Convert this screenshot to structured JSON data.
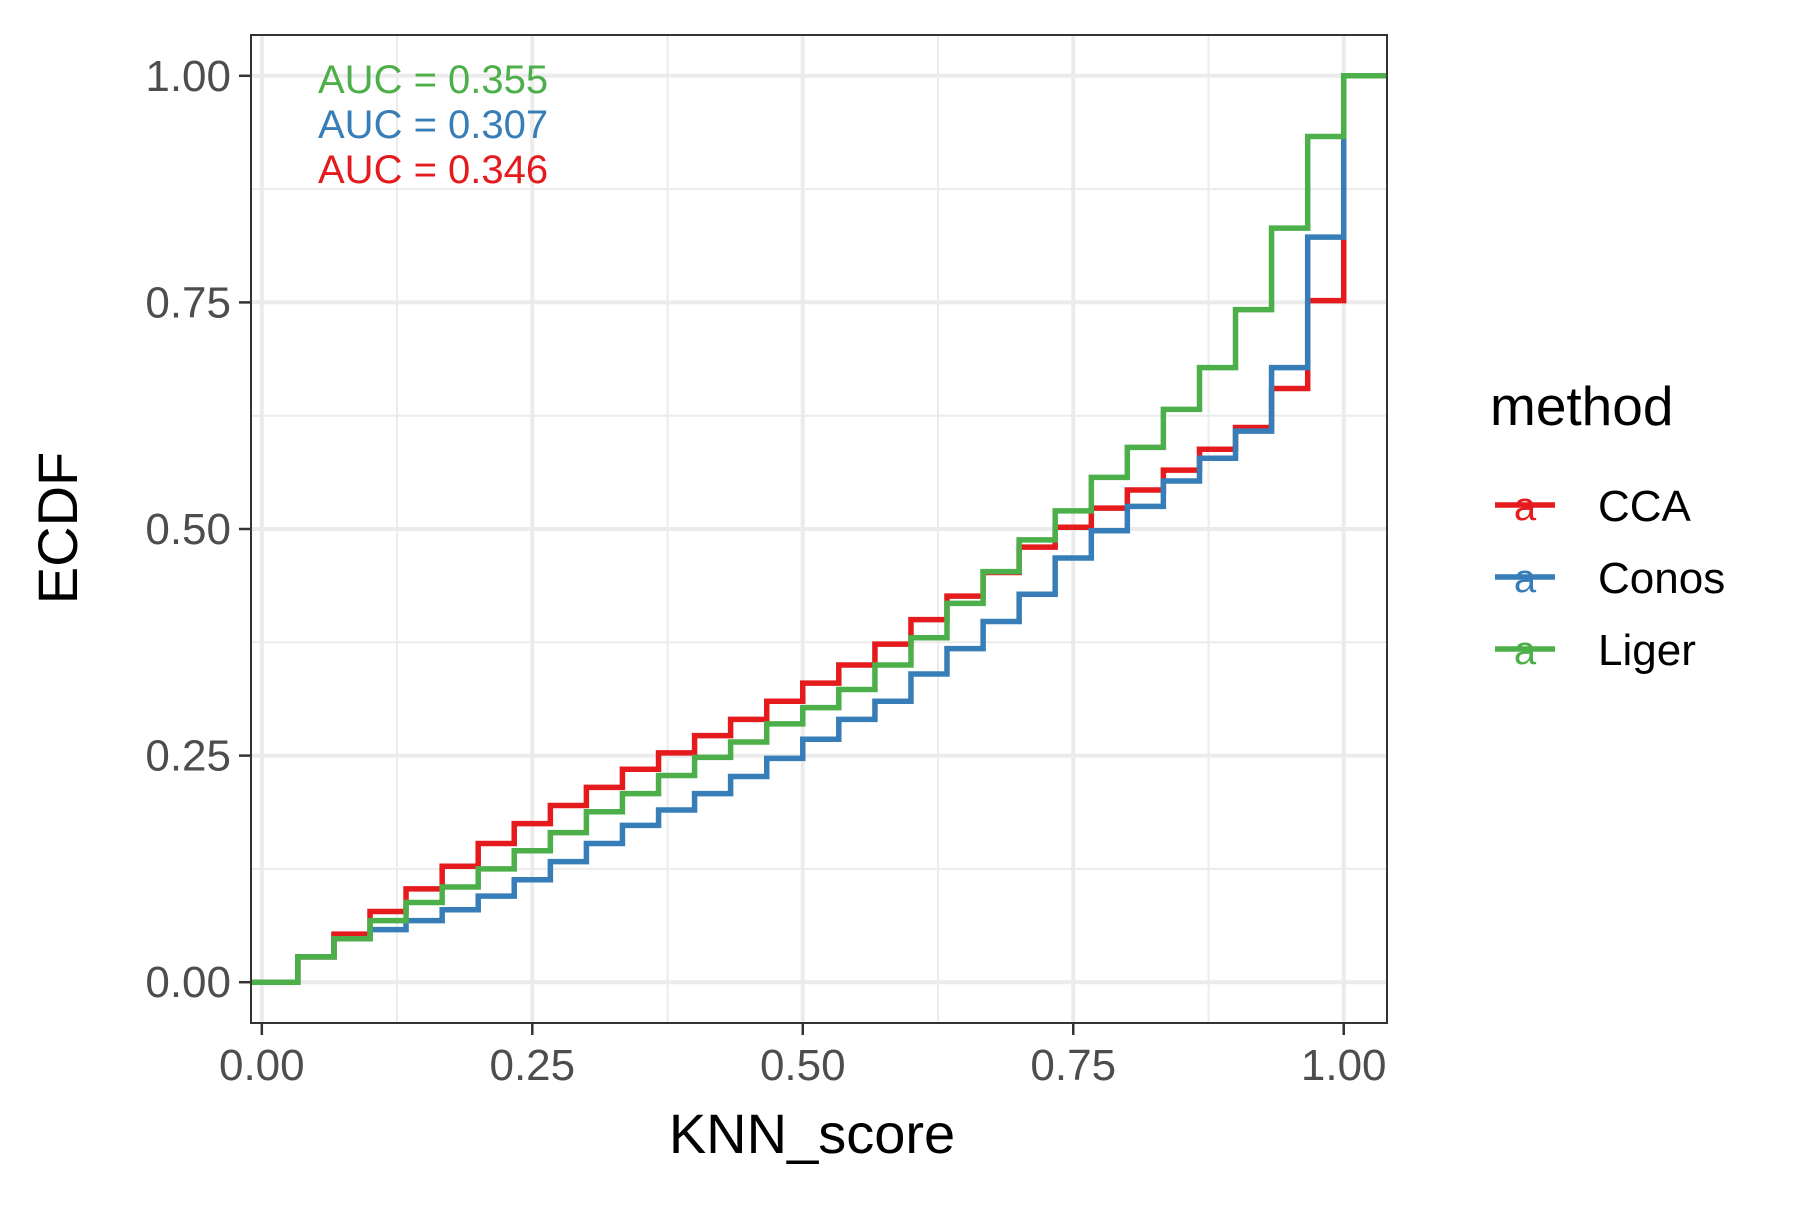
{
  "chart_data": {
    "type": "line",
    "step": true,
    "title": "",
    "xlabel": "KNN_score",
    "ylabel": "ECDF",
    "xlim": [
      -0.01,
      1.04
    ],
    "ylim": [
      -0.045,
      1.045
    ],
    "x_ticks": [
      0,
      0.25,
      0.5,
      0.75,
      1
    ],
    "x_tick_labels": [
      "0.00",
      "0.25",
      "0.50",
      "0.75",
      "1.00"
    ],
    "y_ticks": [
      0,
      0.25,
      0.5,
      0.75,
      1
    ],
    "y_tick_labels": [
      "0.00",
      "0.25",
      "0.50",
      "0.75",
      "1.00"
    ],
    "grid": true,
    "legend": {
      "title": "method",
      "position": "right",
      "key_glyph": "a"
    },
    "annotations": [
      {
        "text": "AUC = 0.355",
        "series": "Liger"
      },
      {
        "text": "AUC = 0.307",
        "series": "Conos"
      },
      {
        "text": "AUC = 0.346",
        "series": "CCA"
      }
    ],
    "series": [
      {
        "name": "CCA",
        "color": "#e41a1c",
        "x": [
          0,
          0.0333,
          0.0667,
          0.1,
          0.1333,
          0.1667,
          0.2,
          0.2333,
          0.2667,
          0.3,
          0.3333,
          0.3667,
          0.4,
          0.4333,
          0.4667,
          0.5,
          0.5333,
          0.5667,
          0.6,
          0.6333,
          0.6667,
          0.7,
          0.7333,
          0.7667,
          0.8,
          0.8333,
          0.8667,
          0.9,
          0.9333,
          0.9667,
          1.0
        ],
        "y": [
          0,
          0.028,
          0.053,
          0.078,
          0.103,
          0.128,
          0.153,
          0.175,
          0.195,
          0.215,
          0.235,
          0.253,
          0.272,
          0.29,
          0.31,
          0.33,
          0.35,
          0.373,
          0.4,
          0.426,
          0.452,
          0.48,
          0.502,
          0.523,
          0.543,
          0.565,
          0.588,
          0.612,
          0.655,
          0.752,
          1.0
        ]
      },
      {
        "name": "Conos",
        "color": "#377eb8",
        "x": [
          0,
          0.0333,
          0.0667,
          0.1,
          0.1333,
          0.1667,
          0.2,
          0.2333,
          0.2667,
          0.3,
          0.3333,
          0.3667,
          0.4,
          0.4333,
          0.4667,
          0.5,
          0.5333,
          0.5667,
          0.6,
          0.6333,
          0.6667,
          0.7,
          0.7333,
          0.7667,
          0.8,
          0.8333,
          0.8667,
          0.9,
          0.9333,
          0.9667,
          1.0
        ],
        "y": [
          0,
          0.028,
          0.048,
          0.058,
          0.068,
          0.08,
          0.095,
          0.113,
          0.133,
          0.153,
          0.173,
          0.19,
          0.208,
          0.227,
          0.247,
          0.268,
          0.29,
          0.31,
          0.34,
          0.368,
          0.398,
          0.428,
          0.468,
          0.498,
          0.525,
          0.553,
          0.578,
          0.608,
          0.678,
          0.822,
          1.0
        ]
      },
      {
        "name": "Liger",
        "color": "#4daf4a",
        "x": [
          0,
          0.0333,
          0.0667,
          0.1,
          0.1333,
          0.1667,
          0.2,
          0.2333,
          0.2667,
          0.3,
          0.3333,
          0.3667,
          0.4,
          0.4333,
          0.4667,
          0.5,
          0.5333,
          0.5667,
          0.6,
          0.6333,
          0.6667,
          0.7,
          0.7333,
          0.7667,
          0.8,
          0.8333,
          0.8667,
          0.9,
          0.9333,
          0.9667,
          1.0
        ],
        "y": [
          0,
          0.028,
          0.048,
          0.068,
          0.088,
          0.105,
          0.125,
          0.145,
          0.165,
          0.188,
          0.208,
          0.228,
          0.248,
          0.265,
          0.285,
          0.303,
          0.323,
          0.35,
          0.38,
          0.418,
          0.453,
          0.488,
          0.52,
          0.557,
          0.59,
          0.632,
          0.678,
          0.742,
          0.832,
          0.933,
          1.0
        ]
      }
    ]
  }
}
